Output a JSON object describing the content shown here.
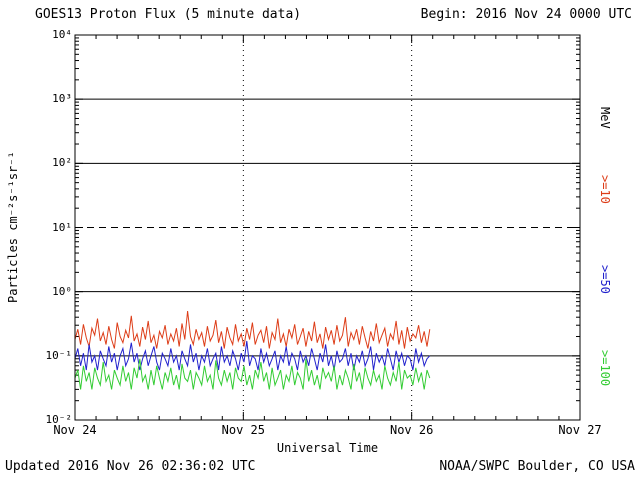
{
  "header": {
    "title": "GOES13 Proton Flux (5 minute data)",
    "begin_label": "Begin: 2016 Nov 24 0000 UTC"
  },
  "footer": {
    "updated": "Updated 2016 Nov 26 02:36:02 UTC",
    "source": "NOAA/SWPC Boulder, CO USA"
  },
  "chart_data": {
    "type": "line",
    "title": "GOES13 Proton Flux (5 minute data)",
    "xlabel": "Universal Time",
    "ylabel": "Particles cm⁻²s⁻¹sr⁻¹",
    "y_scale": "log",
    "ylim": [
      0.01,
      10000
    ],
    "ylim_log": [
      -2,
      4
    ],
    "xlim": [
      0,
      3
    ],
    "x_unit": "days since 2016 Nov 24 0000 UTC",
    "x_ticks": [
      {
        "pos": 0,
        "label": "Nov 24"
      },
      {
        "pos": 1,
        "label": "Nov 25"
      },
      {
        "pos": 2,
        "label": "Nov 26"
      },
      {
        "pos": 3,
        "label": "Nov 27"
      }
    ],
    "y_ticks": [
      {
        "value": 10000,
        "label": "10⁴"
      },
      {
        "value": 1000,
        "label": "10³"
      },
      {
        "value": 100,
        "label": "10²"
      },
      {
        "value": 10,
        "label": "10¹"
      },
      {
        "value": 1,
        "label": "10⁰"
      },
      {
        "value": 0.1,
        "label": "10⁻¹"
      },
      {
        "value": 0.01,
        "label": "10⁻²"
      }
    ],
    "grid_hlines": [
      {
        "value": 1000,
        "style": "solid"
      },
      {
        "value": 100,
        "style": "solid"
      },
      {
        "value": 10,
        "style": "dashed"
      },
      {
        "value": 1,
        "style": "solid"
      },
      {
        "value": 0.1,
        "style": "solid"
      }
    ],
    "grid_vlines_days": [
      1,
      2
    ],
    "right_labels": [
      {
        "text": "MeV",
        "color": "#000000"
      },
      {
        "text": ">=10",
        "color": "#dd3d18"
      },
      {
        "text": ">=50",
        "color": "#2121cd"
      },
      {
        "text": ">=100",
        "color": "#33cc33"
      }
    ],
    "series": [
      {
        "name": ">=10 MeV",
        "color": "#dd3d18",
        "t_start": 0,
        "t_end": 2.108,
        "values": [
          0.18,
          0.26,
          0.15,
          0.31,
          0.19,
          0.14,
          0.27,
          0.21,
          0.38,
          0.17,
          0.23,
          0.15,
          0.29,
          0.18,
          0.13,
          0.33,
          0.2,
          0.16,
          0.25,
          0.19,
          0.42,
          0.17,
          0.22,
          0.14,
          0.28,
          0.18,
          0.35,
          0.16,
          0.21,
          0.13,
          0.24,
          0.19,
          0.3,
          0.15,
          0.22,
          0.17,
          0.27,
          0.14,
          0.32,
          0.18,
          0.5,
          0.2,
          0.15,
          0.26,
          0.18,
          0.23,
          0.14,
          0.29,
          0.17,
          0.21,
          0.36,
          0.16,
          0.24,
          0.13,
          0.28,
          0.19,
          0.15,
          0.31,
          0.17,
          0.22,
          0.14,
          0.27,
          0.18,
          0.33,
          0.15,
          0.21,
          0.25,
          0.16,
          0.29,
          0.13,
          0.23,
          0.18,
          0.38,
          0.16,
          0.22,
          0.14,
          0.26,
          0.19,
          0.31,
          0.15,
          0.2,
          0.27,
          0.14,
          0.24,
          0.17,
          0.34,
          0.16,
          0.22,
          0.13,
          0.28,
          0.18,
          0.25,
          0.15,
          0.3,
          0.17,
          0.21,
          0.4,
          0.14,
          0.23,
          0.18,
          0.26,
          0.15,
          0.29,
          0.19,
          0.13,
          0.24,
          0.17,
          0.32,
          0.16,
          0.21,
          0.27,
          0.14,
          0.22,
          0.18,
          0.35,
          0.15,
          0.25,
          0.13,
          0.28,
          0.17,
          0.22,
          0.19,
          0.3,
          0.16,
          0.24,
          0.14,
          0.26
        ]
      },
      {
        "name": ">=50 MeV",
        "color": "#2121cd",
        "t_start": 0,
        "t_end": 2.108,
        "values": [
          0.09,
          0.13,
          0.07,
          0.11,
          0.06,
          0.15,
          0.08,
          0.1,
          0.06,
          0.12,
          0.09,
          0.07,
          0.14,
          0.08,
          0.11,
          0.06,
          0.1,
          0.13,
          0.07,
          0.09,
          0.16,
          0.08,
          0.11,
          0.06,
          0.09,
          0.12,
          0.07,
          0.1,
          0.14,
          0.08,
          0.06,
          0.11,
          0.09,
          0.07,
          0.13,
          0.08,
          0.1,
          0.06,
          0.12,
          0.09,
          0.07,
          0.15,
          0.08,
          0.11,
          0.06,
          0.1,
          0.08,
          0.13,
          0.07,
          0.09,
          0.11,
          0.06,
          0.14,
          0.08,
          0.1,
          0.07,
          0.12,
          0.09,
          0.06,
          0.11,
          0.08,
          0.17,
          0.07,
          0.1,
          0.09,
          0.06,
          0.13,
          0.08,
          0.11,
          0.07,
          0.09,
          0.12,
          0.06,
          0.1,
          0.08,
          0.14,
          0.07,
          0.11,
          0.09,
          0.06,
          0.12,
          0.08,
          0.1,
          0.07,
          0.13,
          0.09,
          0.06,
          0.11,
          0.08,
          0.15,
          0.07,
          0.1,
          0.06,
          0.12,
          0.08,
          0.09,
          0.13,
          0.07,
          0.11,
          0.06,
          0.1,
          0.08,
          0.12,
          0.07,
          0.09,
          0.14,
          0.06,
          0.11,
          0.08,
          0.1,
          0.07,
          0.13,
          0.09,
          0.06,
          0.12,
          0.08,
          0.11,
          0.07,
          0.1,
          0.09,
          0.06,
          0.13,
          0.08,
          0.11,
          0.07,
          0.09,
          0.1
        ]
      },
      {
        "name": ">=100 MeV",
        "color": "#33cc33",
        "t_start": 0,
        "t_end": 2.108,
        "values": [
          0.045,
          0.06,
          0.03,
          0.07,
          0.04,
          0.055,
          0.03,
          0.065,
          0.045,
          0.035,
          0.08,
          0.04,
          0.05,
          0.03,
          0.06,
          0.045,
          0.035,
          0.07,
          0.04,
          0.055,
          0.03,
          0.065,
          0.045,
          0.09,
          0.04,
          0.05,
          0.03,
          0.06,
          0.035,
          0.07,
          0.045,
          0.03,
          0.055,
          0.04,
          0.065,
          0.035,
          0.05,
          0.03,
          0.075,
          0.045,
          0.04,
          0.06,
          0.03,
          0.055,
          0.045,
          0.035,
          0.07,
          0.04,
          0.05,
          0.03,
          0.085,
          0.045,
          0.035,
          0.06,
          0.04,
          0.055,
          0.03,
          0.065,
          0.045,
          0.04,
          0.07,
          0.035,
          0.05,
          0.03,
          0.06,
          0.045,
          0.08,
          0.04,
          0.055,
          0.03,
          0.065,
          0.035,
          0.045,
          0.06,
          0.03,
          0.05,
          0.04,
          0.07,
          0.035,
          0.055,
          0.045,
          0.03,
          0.09,
          0.04,
          0.06,
          0.035,
          0.05,
          0.03,
          0.065,
          0.045,
          0.055,
          0.04,
          0.07,
          0.03,
          0.05,
          0.035,
          0.06,
          0.045,
          0.03,
          0.075,
          0.04,
          0.055,
          0.03,
          0.065,
          0.045,
          0.035,
          0.06,
          0.04,
          0.05,
          0.03,
          0.07,
          0.045,
          0.035,
          0.055,
          0.04,
          0.08,
          0.03,
          0.06,
          0.045,
          0.05,
          0.035,
          0.065,
          0.04,
          0.055,
          0.03,
          0.06,
          0.045
        ]
      }
    ]
  }
}
